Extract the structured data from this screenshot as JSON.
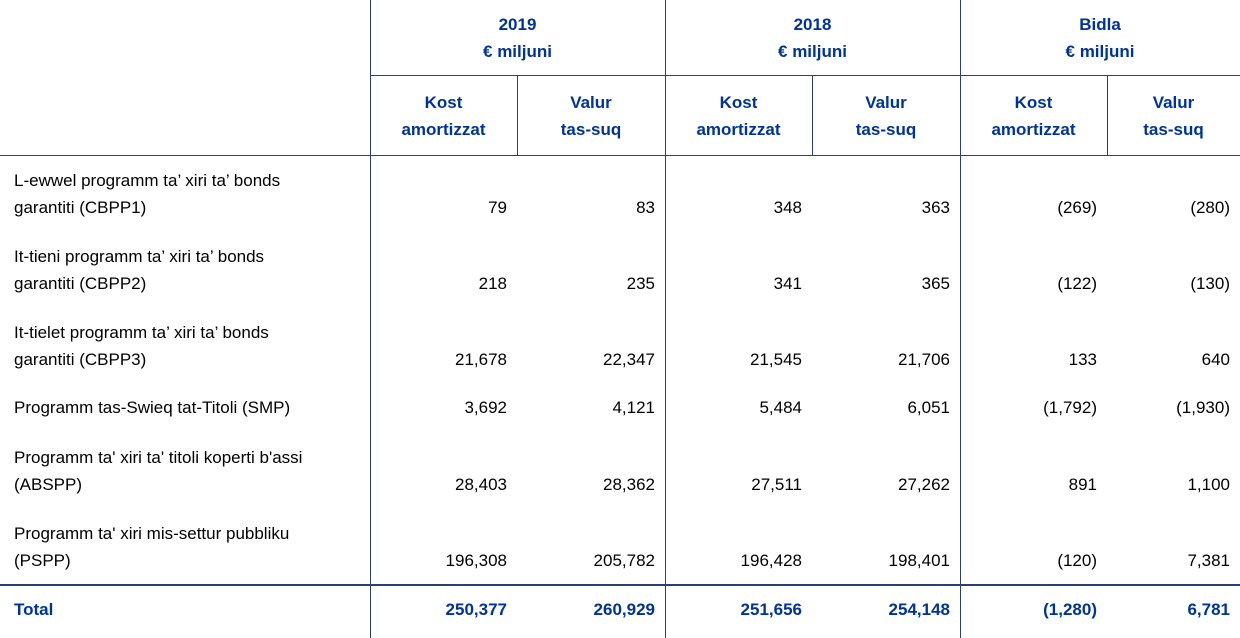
{
  "table": {
    "groups": [
      {
        "title": "2019",
        "unit": "€ miljuni"
      },
      {
        "title": "2018",
        "unit": "€ miljuni"
      },
      {
        "title": "Bidla",
        "unit": "€ miljuni"
      }
    ],
    "columns": [
      [
        "Kost",
        "amortizzat"
      ],
      [
        "Valur",
        "tas-suq"
      ],
      [
        "Kost",
        "amortizzat"
      ],
      [
        "Valur",
        "tas-suq"
      ],
      [
        "Kost",
        "amortizzat"
      ],
      [
        "Valur",
        "tas-suq"
      ]
    ],
    "rows": [
      {
        "label": [
          "L-ewwel programm ta’ xiri ta’ bonds",
          "garantiti (CBPP1)"
        ],
        "values": [
          "79",
          "83",
          "348",
          "363",
          "(269)",
          "(280)"
        ]
      },
      {
        "label": [
          "It-tieni programm ta’ xiri ta’ bonds",
          "garantiti (CBPP2)"
        ],
        "values": [
          "218",
          "235",
          "341",
          "365",
          "(122)",
          "(130)"
        ]
      },
      {
        "label": [
          "It-tielet programm ta’ xiri ta’ bonds",
          "garantiti (CBPP3)"
        ],
        "values": [
          "21,678",
          "22,347",
          "21,545",
          "21,706",
          "133",
          "640"
        ]
      },
      {
        "label": [
          "Programm tas-Swieq tat-Titoli (SMP)"
        ],
        "values": [
          "3,692",
          "4,121",
          "5,484",
          "6,051",
          "(1,792)",
          "(1,930)"
        ]
      },
      {
        "label": [
          "Programm ta' xiri ta' titoli koperti b'assi",
          "(ABSPP)"
        ],
        "values": [
          "28,403",
          "28,362",
          "27,511",
          "27,262",
          "891",
          "1,100"
        ]
      },
      {
        "label": [
          "Programm ta' xiri mis-settur pubbliku",
          "(PSPP)"
        ],
        "values": [
          "196,308",
          "205,782",
          "196,428",
          "198,401",
          "(120)",
          "7,381"
        ]
      }
    ],
    "total": {
      "label": "Total",
      "values": [
        "250,377",
        "260,929",
        "251,656",
        "254,148",
        "(1,280)",
        "6,781"
      ]
    }
  }
}
